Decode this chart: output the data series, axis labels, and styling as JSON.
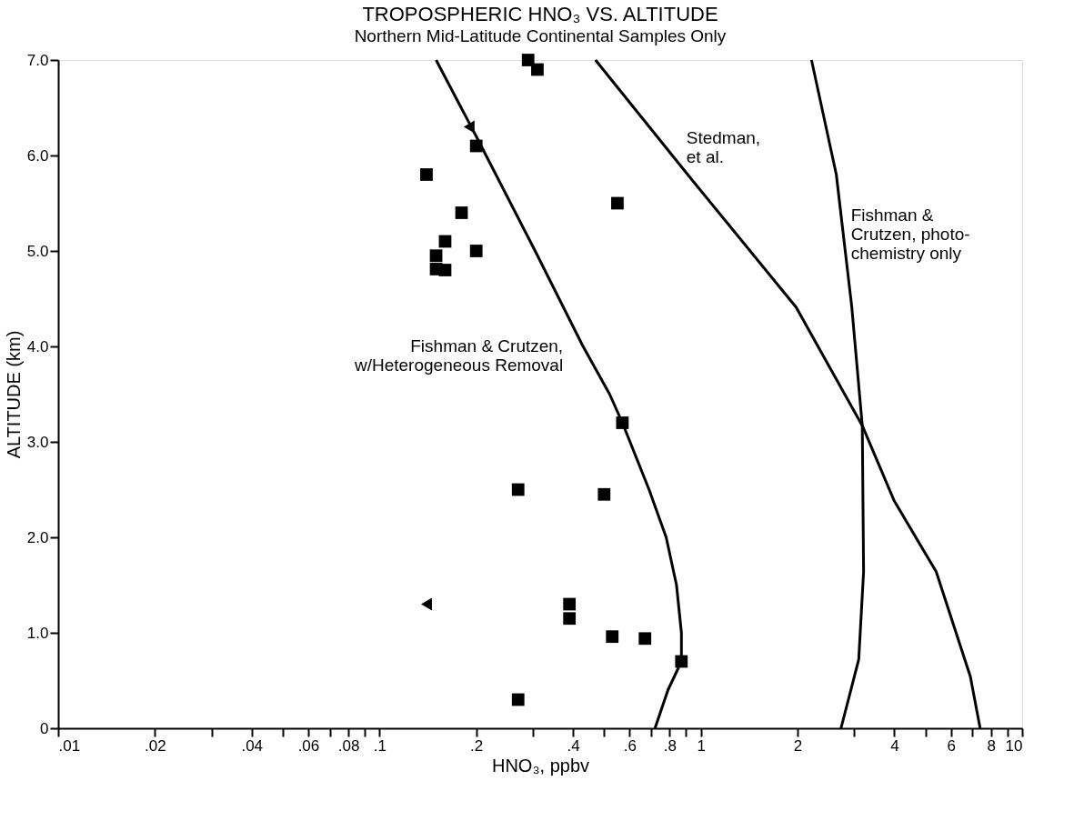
{
  "chart_data": {
    "type": "scatter",
    "title": "TROPOSPHERIC HNO₃ VS. ALTITUDE",
    "subtitle": "Northern Mid-Latitude Continental Samples Only",
    "xlabel": "HNO₃, ppbv",
    "ylabel": "ALTITUDE (km)",
    "log": "x",
    "xlim": [
      0.01,
      10
    ],
    "ylim": [
      0,
      7
    ],
    "xticks": [
      {
        "value": 0.01,
        "label": ".01"
      },
      {
        "value": 0.02,
        "label": ".02"
      },
      {
        "value": 0.03,
        "label": null
      },
      {
        "value": 0.04,
        "label": ".04"
      },
      {
        "value": 0.05,
        "label": null
      },
      {
        "value": 0.06,
        "label": ".06"
      },
      {
        "value": 0.07,
        "label": null
      },
      {
        "value": 0.08,
        "label": ".08"
      },
      {
        "value": 0.09,
        "label": null
      },
      {
        "value": 0.1,
        "label": ".1"
      },
      {
        "value": 0.2,
        "label": ".2"
      },
      {
        "value": 0.3,
        "label": null
      },
      {
        "value": 0.4,
        "label": ".4"
      },
      {
        "value": 0.5,
        "label": null
      },
      {
        "value": 0.6,
        "label": ".6"
      },
      {
        "value": 0.7,
        "label": null
      },
      {
        "value": 0.8,
        "label": ".8"
      },
      {
        "value": 0.9,
        "label": null
      },
      1,
      2,
      {
        "value": 3,
        "label": null
      },
      4,
      {
        "value": 5,
        "label": null
      },
      6,
      {
        "value": 7,
        "label": null
      },
      8,
      {
        "value": 9,
        "label": null
      },
      10
    ],
    "yticks": [
      0,
      {
        "value": 1,
        "label": "1.0"
      },
      {
        "value": 2,
        "label": "2.0"
      },
      {
        "value": 3,
        "label": "3.0"
      },
      {
        "value": 4,
        "label": "4.0"
      },
      {
        "value": 5,
        "label": "5.0"
      },
      {
        "value": 6,
        "label": "6.0"
      },
      {
        "value": 7,
        "label": "7.0"
      }
    ],
    "grid": false,
    "series": [
      {
        "marker": "square",
        "color": "#000000",
        "x": [
          0.29,
          0.31,
          0.2,
          0.14,
          0.18,
          0.55,
          0.16,
          0.2,
          0.15,
          0.15,
          0.16,
          0.57,
          0.27,
          0.5,
          0.39,
          0.39,
          0.53,
          0.67,
          0.87,
          0.27
        ],
        "values": [
          7.0,
          6.9,
          6.1,
          5.8,
          5.4,
          5.5,
          5.1,
          5.0,
          4.95,
          4.81,
          4.8,
          3.2,
          2.5,
          2.45,
          1.3,
          1.15,
          0.96,
          0.94,
          0.7,
          0.3
        ]
      },
      {
        "marker": "triangle",
        "color": "#000000",
        "x": [
          0.19,
          0.14
        ],
        "values": [
          6.3,
          1.3
        ]
      },
      {
        "type": "line",
        "name": "Fishman & Crutzen,\nw/Heterogeneous Removal",
        "color": "#000000",
        "line_style": "solid",
        "marker": "none",
        "x": [
          0.15,
          0.2,
          0.305,
          0.43,
          0.52,
          0.57,
          0.69,
          0.78,
          0.84,
          0.87,
          0.87,
          0.79,
          0.72
        ],
        "values": [
          7.0,
          6.2,
          5.0,
          4.0,
          3.5,
          3.2,
          2.5,
          2.0,
          1.5,
          1.0,
          0.7,
          0.4,
          0
        ]
      },
      {
        "type": "line",
        "name": "Stedman,\net al.",
        "color": "#000000",
        "line_style": "solid",
        "marker": "none",
        "x": [
          0.47,
          0.89,
          1.98,
          3.18,
          4.0,
          5.4,
          6.9,
          7.4
        ],
        "values": [
          7.0,
          5.84,
          4.41,
          3.17,
          2.38,
          1.64,
          0.54,
          0
        ]
      },
      {
        "type": "line",
        "name": "Fishman &\nCrutzen, photo-\nchemistry only",
        "color": "#000000",
        "line_style": "solid",
        "marker": "none",
        "x": [
          2.21,
          2.64,
          2.95,
          3.18,
          3.21,
          3.1,
          2.73
        ],
        "values": [
          7.0,
          5.8,
          4.41,
          3.17,
          1.64,
          0.72,
          0
        ]
      }
    ]
  }
}
